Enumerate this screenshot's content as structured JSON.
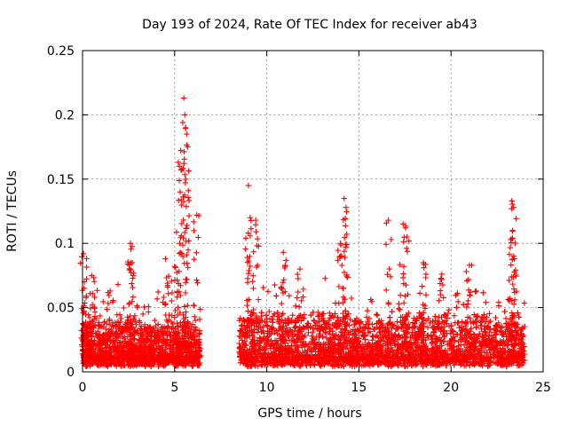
{
  "chart_data": {
    "type": "scatter",
    "title": "Day 193 of 2024, Rate Of TEC Index for receiver ab43",
    "xlabel": "GPS time / hours",
    "ylabel": "ROTI / TECUs",
    "xlim": [
      0,
      25
    ],
    "ylim": [
      0,
      0.25
    ],
    "xticks": [
      0,
      5,
      10,
      15,
      20,
      25
    ],
    "xtick_labels": [
      "0",
      "5",
      "10",
      "15",
      "20",
      "25"
    ],
    "yticks": [
      0,
      0.05,
      0.1,
      0.15,
      0.2,
      0.25
    ],
    "ytick_labels": [
      "0",
      "0.05",
      "0.1",
      "0.15",
      "0.2",
      "0.25"
    ],
    "grid": true,
    "marker": "+",
    "color": "#ff0000",
    "data_gap_hours": [
      6.4,
      8.5
    ],
    "series": [
      {
        "name": "ROTI",
        "segments": [
          {
            "x_start": 0.0,
            "x_end": 6.4,
            "base": 0.012,
            "spread": 0.03
          },
          {
            "x_start": 8.5,
            "x_end": 24.0,
            "base": 0.012,
            "spread": 0.035
          }
        ],
        "peaks": [
          {
            "x": 0.05,
            "y": 0.092
          },
          {
            "x": 0.1,
            "y": 0.07
          },
          {
            "x": 0.5,
            "y": 0.075
          },
          {
            "x": 1.5,
            "y": 0.063
          },
          {
            "x": 2.6,
            "y": 0.1
          },
          {
            "x": 2.7,
            "y": 0.085
          },
          {
            "x": 4.5,
            "y": 0.088
          },
          {
            "x": 5.0,
            "y": 0.082
          },
          {
            "x": 5.2,
            "y": 0.163
          },
          {
            "x": 5.3,
            "y": 0.14
          },
          {
            "x": 5.5,
            "y": 0.213
          },
          {
            "x": 5.55,
            "y": 0.2
          },
          {
            "x": 5.6,
            "y": 0.19
          },
          {
            "x": 5.65,
            "y": 0.185
          },
          {
            "x": 6.2,
            "y": 0.122
          },
          {
            "x": 9.0,
            "y": 0.145
          },
          {
            "x": 9.1,
            "y": 0.12
          },
          {
            "x": 9.4,
            "y": 0.118
          },
          {
            "x": 10.9,
            "y": 0.093
          },
          {
            "x": 11.8,
            "y": 0.08
          },
          {
            "x": 14.2,
            "y": 0.135
          },
          {
            "x": 14.3,
            "y": 0.128
          },
          {
            "x": 14.0,
            "y": 0.1
          },
          {
            "x": 16.6,
            "y": 0.118
          },
          {
            "x": 17.4,
            "y": 0.115
          },
          {
            "x": 17.6,
            "y": 0.105
          },
          {
            "x": 18.5,
            "y": 0.085
          },
          {
            "x": 19.5,
            "y": 0.076
          },
          {
            "x": 21.0,
            "y": 0.083
          },
          {
            "x": 23.3,
            "y": 0.133
          },
          {
            "x": 23.4,
            "y": 0.128
          },
          {
            "x": 23.35,
            "y": 0.11
          },
          {
            "x": 23.4,
            "y": 0.09
          }
        ]
      }
    ]
  }
}
